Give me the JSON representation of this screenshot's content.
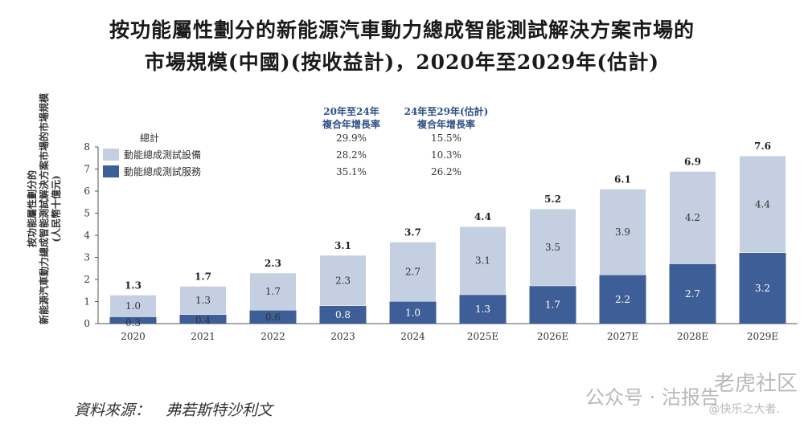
{
  "chart_data": {
    "type": "bar",
    "stacked": true,
    "title": "按功能屬性劃分的新能源汽車動力總成智能測試解決方案市場的",
    "subtitle": "市場規模(中國)(按收益計)，2020年至2029年(估計)",
    "ylabel": "按功能屬性劃分的 新能源汽車動力總成智能測試解決方案市場的市場規模 (人民幣十億元)",
    "ylim": [
      0,
      8
    ],
    "yticks": [
      "0",
      "1",
      "2",
      "3",
      "4",
      "5",
      "6",
      "7",
      "8"
    ],
    "categories": [
      "2020",
      "2021",
      "2022",
      "2023",
      "2024",
      "2025E",
      "2026E",
      "2027E",
      "2028E",
      "2029E"
    ],
    "series": [
      {
        "name": "動能總成測試服務",
        "color": "#3d5e96",
        "values": [
          0.3,
          0.4,
          0.6,
          0.8,
          1.0,
          1.3,
          1.7,
          2.2,
          2.7,
          3.2
        ],
        "labels": [
          "0.3",
          "0.4",
          "0.6",
          "0.8",
          "1.0",
          "1.3",
          "1.7",
          "2.2",
          "2.7",
          "3.2"
        ]
      },
      {
        "name": "動能總成測試設備",
        "color": "#c5cfe2",
        "values": [
          1.0,
          1.3,
          1.7,
          2.3,
          2.7,
          3.1,
          3.5,
          3.9,
          4.2,
          4.4
        ],
        "labels": [
          "1.0",
          "1.3",
          "1.7",
          "2.3",
          "2.7",
          "3.1",
          "3.5",
          "3.9",
          "4.2",
          "4.4"
        ]
      }
    ],
    "totals": [
      1.3,
      1.7,
      2.3,
      3.1,
      3.7,
      4.4,
      5.2,
      6.1,
      6.9,
      7.6
    ],
    "total_labels": [
      "1.3",
      "1.7",
      "2.3",
      "3.1",
      "3.7",
      "4.4",
      "5.2",
      "6.1",
      "6.9",
      "7.6"
    ],
    "cagr_table": {
      "col1_header": [
        "20年至24年",
        "複合年增長率"
      ],
      "col2_header": [
        "24年至29年(估計)",
        "複合年增長率"
      ],
      "rows": [
        {
          "label": "總計",
          "col1": "29.9%",
          "col2": "15.5%"
        },
        {
          "label": "動能總成測試設備",
          "col1": "28.2%",
          "col2": "10.3%"
        },
        {
          "label": "動能總成測試服務",
          "col1": "35.1%",
          "col2": "26.2%"
        }
      ]
    }
  },
  "ylabel_lines": [
    "按功能屬性劃分的",
    "新能源汽車動力總成智能測試解決方案市場的市場規模",
    "(人民幣十億元)"
  ],
  "source": "資料來源：　弗若斯特沙利文",
  "watermark": {
    "text1": "公众号 · 沽报告",
    "text2": "老虎社区",
    "text3": "@快乐之大者."
  },
  "colors": {
    "dark_bar": "#3d5e96",
    "light_bar": "#c5cfe2",
    "header_blue": "#2e4f86"
  }
}
